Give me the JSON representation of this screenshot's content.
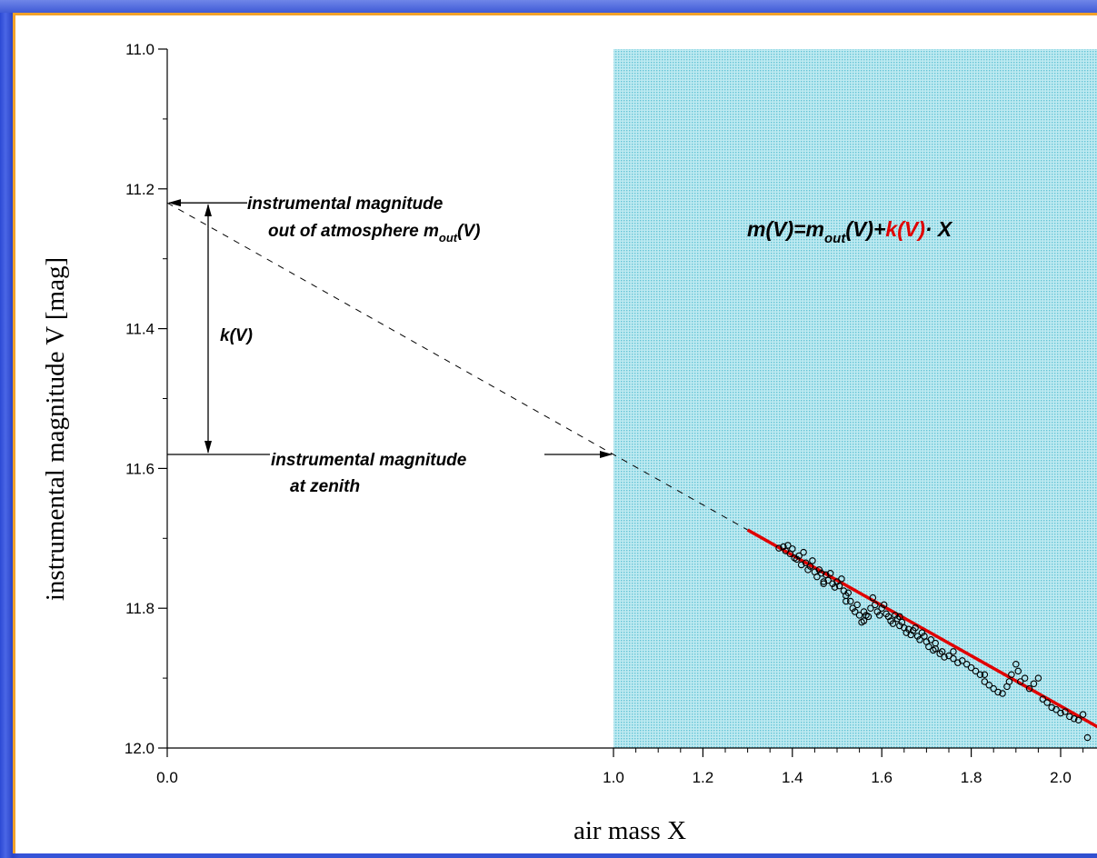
{
  "chart_data": {
    "type": "scatter",
    "xlabel": "air mass X",
    "ylabel": "instrumental magnitude V [mag]",
    "xlim": [
      0.0,
      2.1
    ],
    "ylim": [
      11.0,
      12.0
    ],
    "y_inverted": true,
    "x_axis_break": [
      0.0,
      1.0
    ],
    "x_ticks": [
      "0.0",
      "1.0",
      "1.2",
      "1.4",
      "1.6",
      "1.8",
      "2.0"
    ],
    "x_tick_values": [
      0.0,
      1.0,
      1.2,
      1.4,
      1.6,
      1.8,
      2.0
    ],
    "y_ticks": [
      "11.0",
      "11.2",
      "11.4",
      "11.6",
      "11.8",
      "12.0"
    ],
    "y_tick_values": [
      11.0,
      11.2,
      11.4,
      11.6,
      11.8,
      12.0
    ],
    "shaded_region": {
      "x": [
        1.0,
        2.1
      ],
      "color": "#a8e2ec"
    },
    "fit_line": {
      "x": [
        1.3,
        2.1
      ],
      "slope": 0.36,
      "intercept": 11.22,
      "color": "#e00000"
    },
    "extrapolation_line": {
      "x": [
        0.0,
        1.3
      ],
      "slope": 0.36,
      "intercept": 11.22
    },
    "points": [
      [
        1.37,
        11.714
      ],
      [
        1.38,
        11.712
      ],
      [
        1.385,
        11.718
      ],
      [
        1.39,
        11.71
      ],
      [
        1.395,
        11.722
      ],
      [
        1.4,
        11.715
      ],
      [
        1.405,
        11.728
      ],
      [
        1.41,
        11.73
      ],
      [
        1.415,
        11.725
      ],
      [
        1.42,
        11.738
      ],
      [
        1.425,
        11.72
      ],
      [
        1.43,
        11.735
      ],
      [
        1.435,
        11.745
      ],
      [
        1.44,
        11.74
      ],
      [
        1.445,
        11.732
      ],
      [
        1.45,
        11.748
      ],
      [
        1.455,
        11.755
      ],
      [
        1.46,
        11.745
      ],
      [
        1.465,
        11.75
      ],
      [
        1.47,
        11.762
      ],
      [
        1.475,
        11.752
      ],
      [
        1.48,
        11.76
      ],
      [
        1.485,
        11.75
      ],
      [
        1.49,
        11.765
      ],
      [
        1.495,
        11.77
      ],
      [
        1.5,
        11.762
      ],
      [
        1.505,
        11.768
      ],
      [
        1.51,
        11.758
      ],
      [
        1.515,
        11.775
      ],
      [
        1.52,
        11.782
      ],
      [
        1.525,
        11.778
      ],
      [
        1.53,
        11.79
      ],
      [
        1.535,
        11.8
      ],
      [
        1.54,
        11.805
      ],
      [
        1.545,
        11.795
      ],
      [
        1.55,
        11.81
      ],
      [
        1.555,
        11.82
      ],
      [
        1.56,
        11.805
      ],
      [
        1.565,
        11.81
      ],
      [
        1.57,
        11.812
      ],
      [
        1.575,
        11.8
      ],
      [
        1.58,
        11.785
      ],
      [
        1.585,
        11.795
      ],
      [
        1.59,
        11.805
      ],
      [
        1.595,
        11.81
      ],
      [
        1.6,
        11.8
      ],
      [
        1.605,
        11.795
      ],
      [
        1.61,
        11.808
      ],
      [
        1.615,
        11.812
      ],
      [
        1.62,
        11.818
      ],
      [
        1.625,
        11.822
      ],
      [
        1.63,
        11.81
      ],
      [
        1.635,
        11.815
      ],
      [
        1.64,
        11.825
      ],
      [
        1.645,
        11.82
      ],
      [
        1.65,
        11.828
      ],
      [
        1.655,
        11.835
      ],
      [
        1.66,
        11.83
      ],
      [
        1.665,
        11.838
      ],
      [
        1.67,
        11.832
      ],
      [
        1.675,
        11.828
      ],
      [
        1.68,
        11.84
      ],
      [
        1.685,
        11.845
      ],
      [
        1.69,
        11.835
      ],
      [
        1.695,
        11.84
      ],
      [
        1.7,
        11.848
      ],
      [
        1.705,
        11.855
      ],
      [
        1.71,
        11.845
      ],
      [
        1.715,
        11.86
      ],
      [
        1.72,
        11.858
      ],
      [
        1.73,
        11.865
      ],
      [
        1.735,
        11.862
      ],
      [
        1.74,
        11.87
      ],
      [
        1.75,
        11.868
      ],
      [
        1.76,
        11.872
      ],
      [
        1.77,
        11.878
      ],
      [
        1.78,
        11.875
      ],
      [
        1.79,
        11.88
      ],
      [
        1.8,
        11.885
      ],
      [
        1.81,
        11.89
      ],
      [
        1.82,
        11.895
      ],
      [
        1.83,
        11.905
      ],
      [
        1.84,
        11.91
      ],
      [
        1.85,
        11.915
      ],
      [
        1.86,
        11.92
      ],
      [
        1.87,
        11.922
      ],
      [
        1.88,
        11.912
      ],
      [
        1.885,
        11.905
      ],
      [
        1.89,
        11.895
      ],
      [
        1.9,
        11.88
      ],
      [
        1.905,
        11.89
      ],
      [
        1.91,
        11.905
      ],
      [
        1.92,
        11.9
      ],
      [
        1.93,
        11.915
      ],
      [
        1.94,
        11.908
      ],
      [
        1.95,
        11.9
      ],
      [
        1.96,
        11.93
      ],
      [
        1.97,
        11.935
      ],
      [
        1.98,
        11.942
      ],
      [
        1.99,
        11.945
      ],
      [
        2.0,
        11.95
      ],
      [
        2.01,
        11.948
      ],
      [
        2.02,
        11.955
      ],
      [
        2.03,
        11.958
      ],
      [
        2.04,
        11.96
      ],
      [
        2.05,
        11.952
      ],
      [
        2.06,
        11.985
      ],
      [
        1.47,
        11.765
      ],
      [
        1.52,
        11.79
      ],
      [
        1.56,
        11.818
      ],
      [
        1.64,
        11.812
      ],
      [
        1.72,
        11.85
      ],
      [
        1.76,
        11.862
      ],
      [
        1.83,
        11.895
      ]
    ]
  },
  "annotations": {
    "out_of_atmosphere_line1": "instrumental magnitude",
    "out_of_atmosphere_line2_prefix": "out of atmosphere m",
    "out_of_atmosphere_sub": "out",
    "out_of_atmosphere_suffix": "(V)",
    "zenith_line1": "instrumental magnitude",
    "zenith_line2": "at zenith",
    "k_label": "k(V)",
    "formula_part1": "m(V)=m",
    "formula_sub": "out",
    "formula_part2": "(V)+",
    "formula_k": "k(V)",
    "formula_part3": "· X"
  },
  "colors": {
    "shade": "#a8e2ec",
    "fit": "#e00000",
    "accent_border": "#f2a22a",
    "background": "#3050d0"
  }
}
